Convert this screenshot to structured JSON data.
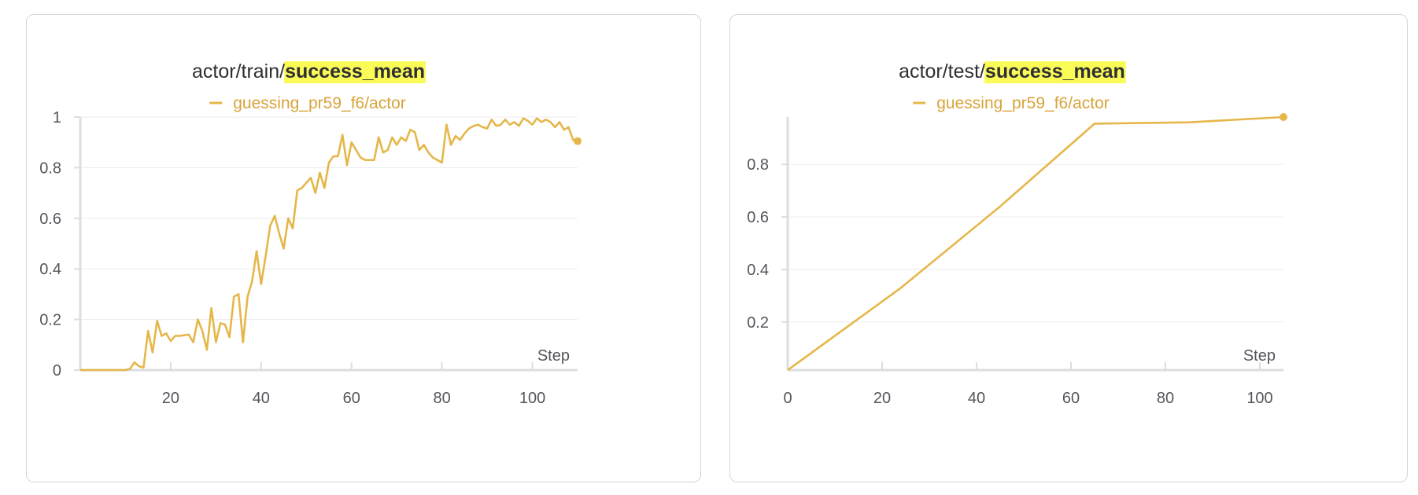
{
  "colors": {
    "series": "#e5b74a",
    "highlight": "#fbfb57",
    "grid": "#ececee",
    "axis": "#dddde0",
    "legend_text": "#d8a43a"
  },
  "chart_data": [
    {
      "type": "line",
      "title_prefix": "actor/train/",
      "title_highlight": "success_mean",
      "xlabel": "Step",
      "ylabel": "",
      "xlim": [
        0,
        110
      ],
      "ylim": [
        0,
        1
      ],
      "x_ticks": [
        "20",
        "40",
        "60",
        "80",
        "100"
      ],
      "y_ticks": [
        "0",
        "0.2",
        "0.4",
        "0.6",
        "0.8",
        "1"
      ],
      "legend_position": "top-center",
      "end_marker": true,
      "series": [
        {
          "name": "guessing_pr59_f6/actor",
          "x": [
            0,
            1,
            2,
            3,
            4,
            5,
            6,
            7,
            8,
            9,
            10,
            11,
            12,
            13,
            14,
            15,
            16,
            17,
            18,
            19,
            20,
            21,
            22,
            23,
            24,
            25,
            26,
            27,
            28,
            29,
            30,
            31,
            32,
            33,
            34,
            35,
            36,
            37,
            38,
            39,
            40,
            41,
            42,
            43,
            44,
            45,
            46,
            47,
            48,
            49,
            50,
            51,
            52,
            53,
            54,
            55,
            56,
            57,
            58,
            59,
            60,
            61,
            62,
            63,
            64,
            65,
            66,
            67,
            68,
            69,
            70,
            71,
            72,
            73,
            74,
            75,
            76,
            77,
            78,
            79,
            80,
            81,
            82,
            83,
            84,
            85,
            86,
            87,
            88,
            89,
            90,
            91,
            92,
            93,
            94,
            95,
            96,
            97,
            98,
            99,
            100,
            101,
            102,
            103,
            104,
            105,
            106,
            107,
            108,
            109,
            110
          ],
          "values": [
            0,
            0,
            0,
            0,
            0,
            0,
            0,
            0,
            0,
            0,
            0,
            0.005,
            0.03,
            0.015,
            0.01,
            0.155,
            0.07,
            0.195,
            0.135,
            0.145,
            0.115,
            0.135,
            0.135,
            0.138,
            0.14,
            0.11,
            0.2,
            0.155,
            0.08,
            0.245,
            0.11,
            0.185,
            0.18,
            0.13,
            0.29,
            0.3,
            0.11,
            0.29,
            0.35,
            0.47,
            0.34,
            0.45,
            0.57,
            0.61,
            0.54,
            0.48,
            0.6,
            0.56,
            0.71,
            0.72,
            0.74,
            0.76,
            0.7,
            0.78,
            0.72,
            0.82,
            0.845,
            0.845,
            0.93,
            0.81,
            0.9,
            0.87,
            0.84,
            0.83,
            0.83,
            0.83,
            0.92,
            0.86,
            0.87,
            0.92,
            0.89,
            0.92,
            0.905,
            0.95,
            0.94,
            0.87,
            0.89,
            0.86,
            0.84,
            0.83,
            0.82,
            0.97,
            0.89,
            0.925,
            0.91,
            0.935,
            0.955,
            0.965,
            0.97,
            0.96,
            0.955,
            0.99,
            0.965,
            0.97,
            0.99,
            0.97,
            0.98,
            0.965,
            0.995,
            0.985,
            0.97,
            0.995,
            0.98,
            0.99,
            0.98,
            0.96,
            0.98,
            0.95,
            0.96,
            0.91,
            0.905
          ]
        }
      ]
    },
    {
      "type": "line",
      "title_prefix": "actor/test/",
      "title_highlight": "success_mean",
      "xlabel": "Step",
      "ylabel": "",
      "xlim": [
        0,
        105
      ],
      "ylim": [
        0.017,
        0.98
      ],
      "x_ticks": [
        "0",
        "20",
        "40",
        "60",
        "80",
        "100"
      ],
      "y_ticks": [
        "0.2",
        "0.4",
        "0.6",
        "0.8"
      ],
      "legend_position": "top-center",
      "end_marker": true,
      "series": [
        {
          "name": "guessing_pr59_f6/actor",
          "x": [
            0,
            24,
            45,
            65,
            85,
            105
          ],
          "values": [
            0.017,
            0.33,
            0.64,
            0.955,
            0.96,
            0.98
          ]
        }
      ]
    }
  ]
}
